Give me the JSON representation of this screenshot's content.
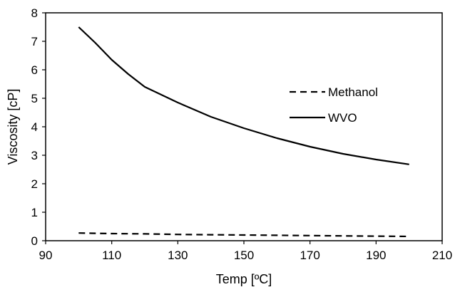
{
  "chart_data": {
    "type": "line",
    "title": "",
    "xlabel": "Temp [ºC]",
    "ylabel": "Viscosity [cP]",
    "xlim": [
      90,
      210
    ],
    "ylim": [
      0,
      8
    ],
    "xticks": [
      90,
      110,
      130,
      150,
      170,
      190,
      210
    ],
    "yticks": [
      0,
      1,
      2,
      3,
      4,
      5,
      6,
      7,
      8
    ],
    "grid": false,
    "legend_position": "right",
    "series": [
      {
        "name": "Methanol",
        "style": "dashed",
        "x": [
          100,
          110,
          120,
          130,
          140,
          150,
          160,
          170,
          180,
          190,
          200
        ],
        "y": [
          0.27,
          0.25,
          0.24,
          0.22,
          0.21,
          0.2,
          0.19,
          0.18,
          0.17,
          0.16,
          0.15
        ]
      },
      {
        "name": "WVO",
        "style": "solid",
        "x": [
          100,
          105,
          110,
          115,
          120,
          130,
          140,
          150,
          160,
          170,
          180,
          190,
          200
        ],
        "y": [
          7.5,
          6.95,
          6.35,
          5.85,
          5.4,
          4.85,
          4.35,
          3.95,
          3.6,
          3.3,
          3.05,
          2.85,
          2.68
        ]
      }
    ]
  }
}
